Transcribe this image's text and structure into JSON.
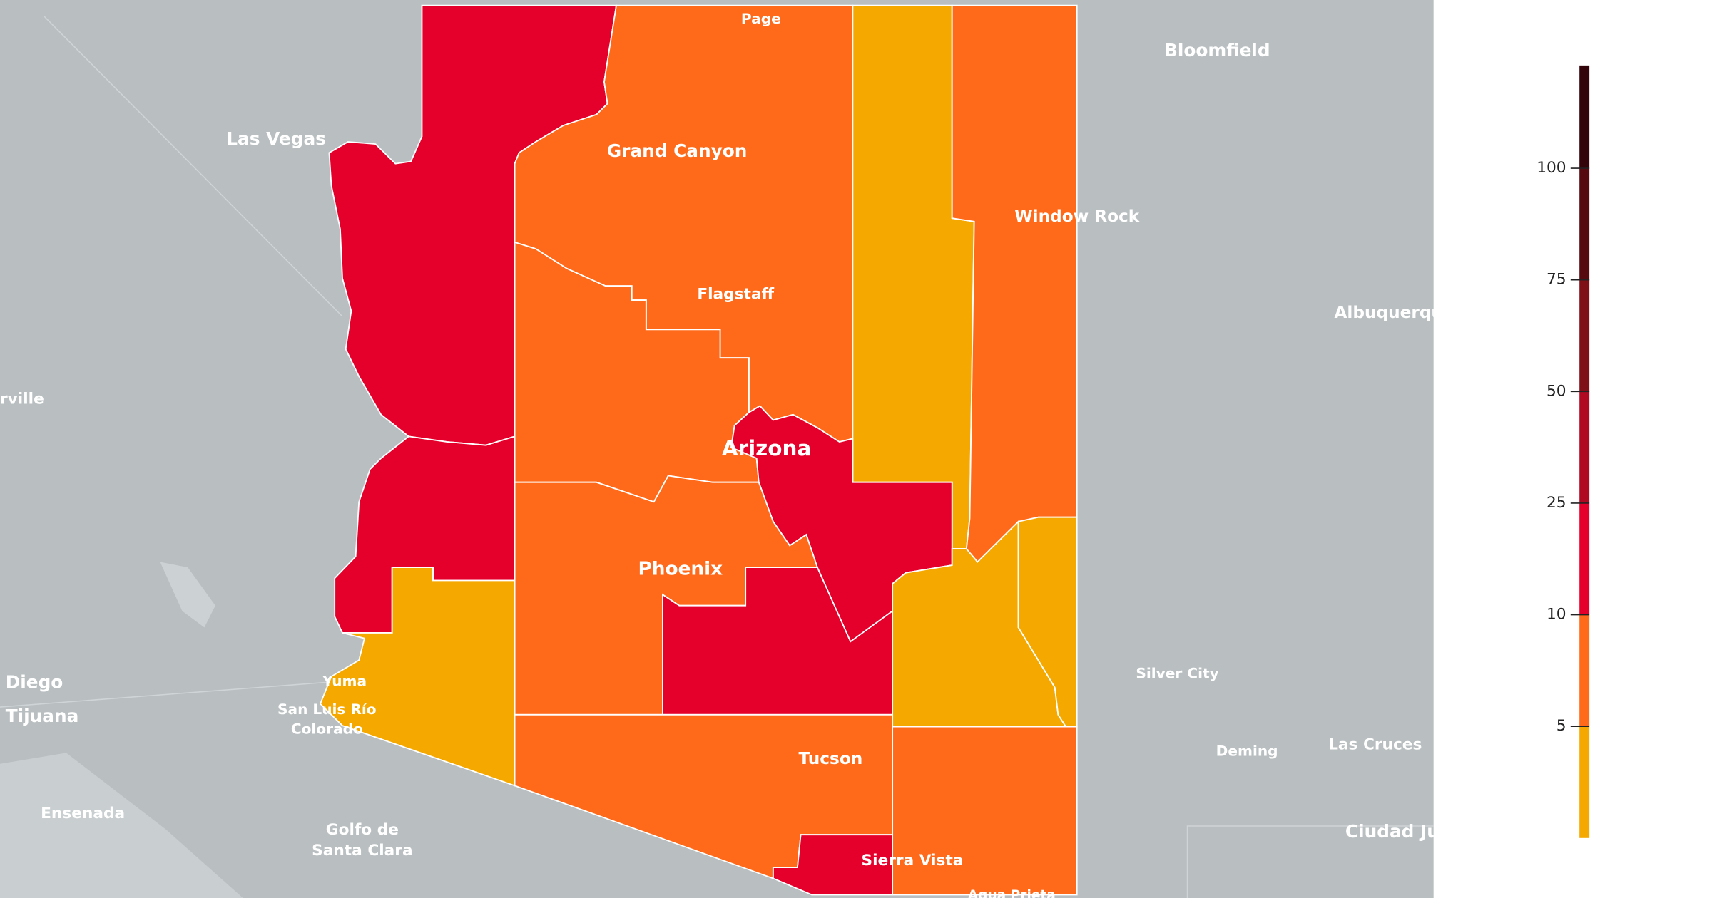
{
  "map": {
    "region_label": "Arizona",
    "places": [
      "Page",
      "Grand Canyon",
      "Bloomfield",
      "Las Vegas",
      "Window Rock",
      "Flagstaff",
      "Albuquerqu",
      "rville",
      "Phoenix",
      "Diego",
      "Silver City",
      "Yuma",
      "San Luis Río",
      "Colorado",
      "Tijuana",
      "Deming",
      "Las Cruces",
      "Tucson",
      "Ensenada",
      "Golfo de",
      "Santa Clara",
      "Ciudad Ju",
      "Sierra Vista",
      "Agua Prieta"
    ]
  },
  "legend": {
    "ticks": [
      5,
      10,
      25,
      50,
      75,
      100
    ],
    "colors": [
      "#f5a800",
      "#ff6a1a",
      "#e4002b",
      "#b00a22",
      "#7f1018",
      "#560a10",
      "#33040a"
    ]
  }
}
